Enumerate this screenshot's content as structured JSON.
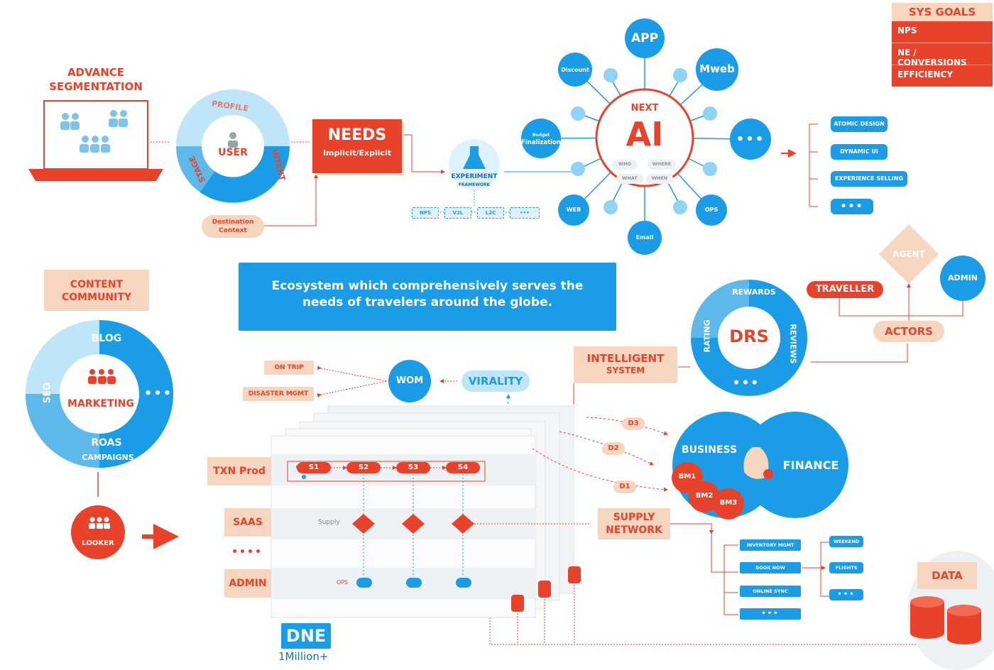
{
  "sys_goals": {
    "title": "SYS GOALS",
    "items": [
      "NPS",
      "NE / CONVERSIONS",
      "EFFICIENCY"
    ]
  },
  "segmentation": {
    "title_line1": "ADVANCE",
    "title_line2": "SEGMENTATION"
  },
  "user_ring": {
    "center": "USER",
    "profile": "PROFILE",
    "intent": "INTENT",
    "stage": "STAGE"
  },
  "destination": {
    "line1": "Destination",
    "line2": "Context"
  },
  "needs": {
    "title": "NEEDS",
    "subtitle": "Implicit/Explicit"
  },
  "experiment": {
    "line1": "EXPERIMENT",
    "line2": "FRAMEWORK",
    "tags": [
      "NPS",
      "V2L",
      "L2C",
      "•••"
    ]
  },
  "ai_hub": {
    "next": "NEXT",
    "ai": "AI",
    "who": "WHO",
    "where": "WHERE",
    "what": "WHAT",
    "when": "WHEN",
    "nodes": {
      "app": "APP",
      "mweb": "Mweb",
      "discount": "Discount",
      "budget_line1": "Budget",
      "budget_line2": "Finalization",
      "more": "•••",
      "web": "WEB",
      "email": "Email",
      "ops": "OPS"
    }
  },
  "outputs": [
    "ATOMIC DESIGN",
    "DYNAMIC UI",
    "EXPERIENCE SELLING",
    "•••"
  ],
  "content_community": {
    "line1": "CONTENT",
    "line2": "COMMUNITY"
  },
  "marketing_ring": {
    "center": "MARKETING",
    "blog": "BLOG",
    "seo": "SEO",
    "more": "•••",
    "roas": "ROAS",
    "campaigns": "CAMPAIGNS"
  },
  "looker": "LOOKER",
  "banner": {
    "line1": "Ecosystem which comprehensively serves the",
    "line2": "needs of travelers around the globe."
  },
  "wom": "WOM",
  "virality": "VIRALITY",
  "on_trip": "ON TRIP",
  "disaster": "DISASTER MGMT",
  "intelligent": {
    "line1": "INTELLIGENT",
    "line2": "SYSTEM"
  },
  "drs_ring": {
    "center": "DRS",
    "rewards": "REWARDS",
    "rating": "RATING",
    "reviews": "REVIEWS",
    "more": "•••"
  },
  "actors": {
    "label": "ACTORS",
    "agent": "AGENT",
    "admin": "ADMIN",
    "traveller": "TRAVELLER"
  },
  "layers": {
    "txn": "TXN Prod",
    "saas": "SAAS",
    "more": "••••",
    "admin": "ADMIN"
  },
  "steps": [
    "S1",
    "S2",
    "S3",
    "S4"
  ],
  "supply_label": "Supply",
  "ops_label": "OPS",
  "dne": {
    "title": "DNE",
    "subtitle": "1Million+"
  },
  "d_nodes": [
    "D3",
    "D2",
    "D1"
  ],
  "biz_fin": {
    "business": "BUSINESS",
    "finance": "FINANCE",
    "bm": [
      "BM1",
      "BM2",
      "BM3"
    ]
  },
  "supply_network": {
    "line1": "SUPPLY",
    "line2": "NETWORK"
  },
  "supply_list": [
    "INVENTORY MGMT",
    "BOOK NOW",
    "ONLINE SYNC",
    "•••"
  ],
  "supply_sub": [
    "WEEKEND",
    "FLIGHTS",
    "•••"
  ],
  "data": "DATA",
  "colors": {
    "orange": "#e8432a",
    "blue": "#1a9de6",
    "light_blue": "#bfe6f8",
    "peach": "#f7d6bf"
  }
}
